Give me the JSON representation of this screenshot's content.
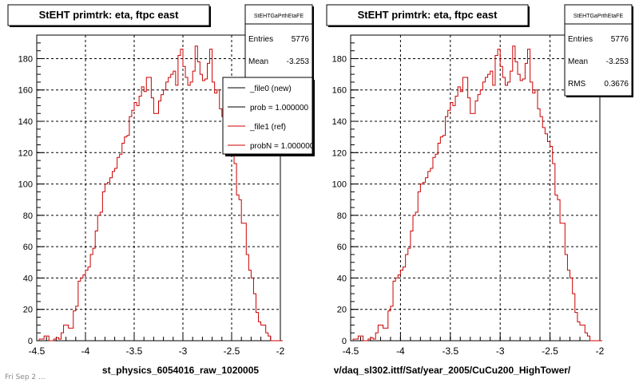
{
  "footer_text": "Fri Sep 2 ...",
  "legend": {
    "entries": [
      {
        "label": "_file0 (new)",
        "color": "#000000"
      },
      {
        "label": "prob = 1.000000",
        "color": "#000000"
      },
      {
        "label": "_file1 (ref)",
        "color": "#cc0000"
      },
      {
        "label": "probN = 1.000000",
        "color": "#cc0000"
      }
    ]
  },
  "colors": {
    "ref_line": "#cc0000",
    "new_line": "#000000",
    "grid": "#000000",
    "pad_bg": "#ffffff"
  },
  "chart_data": [
    {
      "type": "line",
      "title": "StEHT primtrk: eta, ftpc east",
      "xlabel": "st_physics_6054016_raw_1020005",
      "ylabel": "",
      "xlim": [
        -4.5,
        -2
      ],
      "ylim": [
        0,
        195
      ],
      "x_ticks": [
        -4.5,
        -4,
        -3.5,
        -3,
        -2.5,
        -2
      ],
      "y_ticks": [
        0,
        20,
        40,
        60,
        80,
        100,
        120,
        140,
        160,
        180
      ],
      "grid": true,
      "legend_position": "top-right",
      "stats": {
        "name": "StEHTGaPrthEtaFE",
        "rows": [
          {
            "label": "Entries",
            "value": "5776"
          },
          {
            "label": "Mean",
            "value": "-3.253"
          }
        ]
      },
      "bin_edges": {
        "start": -4.475,
        "width": 0.025
      },
      "series": [
        {
          "name": "_file1 (ref)",
          "values": [
            1,
            1,
            3,
            3,
            0,
            0,
            1,
            2,
            1,
            5,
            10,
            10,
            8,
            8,
            19,
            22,
            38,
            40,
            42,
            45,
            47,
            55,
            59,
            70,
            80,
            82,
            95,
            100,
            101,
            104,
            108,
            110,
            117,
            119,
            126,
            130,
            131,
            143,
            147,
            152,
            150,
            156,
            162,
            159,
            168,
            168,
            155,
            145,
            145,
            153,
            157,
            160,
            165,
            168,
            170,
            172,
            163,
            182,
            186,
            175,
            168,
            163,
            165,
            172,
            188,
            178,
            170,
            166,
            167,
            177,
            186,
            165,
            158,
            160,
            148,
            143,
            136,
            132,
            127,
            124,
            113,
            93,
            90,
            75,
            75,
            55,
            45,
            40,
            30,
            18,
            12,
            10,
            10,
            5,
            3,
            0,
            0,
            0,
            0,
            0
          ]
        }
      ]
    },
    {
      "type": "line",
      "title": "StEHT primtrk: eta, ftpc east",
      "xlabel": "v/daq_sl302.ittf/Sat/year_2005/CuCu200_HighTower/",
      "ylabel": "",
      "xlim": [
        -4.5,
        -2
      ],
      "ylim": [
        0,
        195
      ],
      "x_ticks": [
        -4.5,
        -4,
        -3.5,
        -3,
        -2.5,
        -2
      ],
      "y_ticks": [
        0,
        20,
        40,
        60,
        80,
        100,
        120,
        140,
        160,
        180
      ],
      "grid": true,
      "stats": {
        "name": "StEHTGaPrthEtaFE",
        "rows": [
          {
            "label": "Entries",
            "value": "5776"
          },
          {
            "label": "Mean",
            "value": "-3.253"
          },
          {
            "label": "RMS",
            "value": "0.3676"
          }
        ]
      },
      "bin_edges": {
        "start": -4.475,
        "width": 0.025
      },
      "series": [
        {
          "name": "_file1 (ref)",
          "values": [
            1,
            1,
            3,
            3,
            0,
            0,
            1,
            2,
            1,
            5,
            10,
            10,
            8,
            8,
            19,
            22,
            38,
            40,
            42,
            45,
            47,
            55,
            59,
            70,
            80,
            82,
            95,
            100,
            101,
            104,
            108,
            110,
            117,
            119,
            126,
            130,
            131,
            143,
            147,
            152,
            150,
            156,
            162,
            159,
            168,
            168,
            155,
            145,
            145,
            153,
            157,
            160,
            165,
            168,
            170,
            172,
            163,
            182,
            186,
            175,
            168,
            163,
            165,
            172,
            188,
            178,
            170,
            166,
            167,
            177,
            186,
            165,
            158,
            160,
            148,
            143,
            136,
            132,
            127,
            124,
            113,
            93,
            90,
            75,
            75,
            55,
            45,
            40,
            30,
            18,
            12,
            10,
            10,
            5,
            3,
            0,
            0,
            0,
            0,
            0
          ]
        }
      ]
    }
  ]
}
